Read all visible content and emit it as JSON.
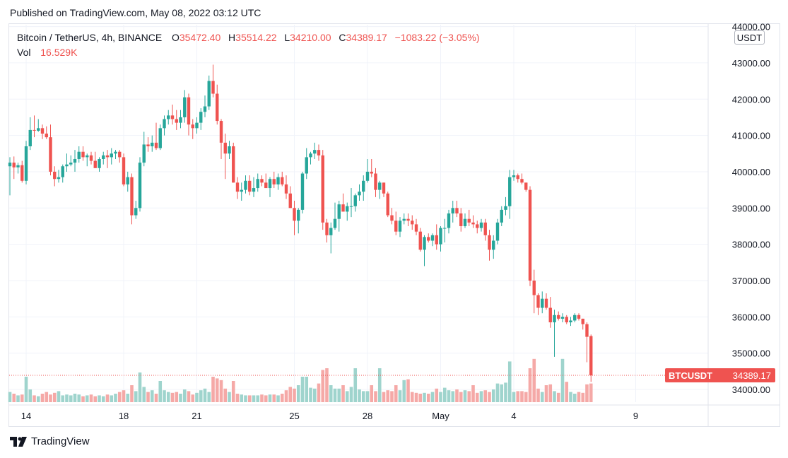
{
  "header": {
    "published": "Published on TradingView.com, May 08, 2022 03:12 UTC"
  },
  "legend": {
    "symbol": "Bitcoin / TetherUS, 4h, BINANCE",
    "open_label": "O",
    "open": "35472.40",
    "high_label": "H",
    "high": "35514.22",
    "low_label": "L",
    "low": "34210.00",
    "close_label": "C",
    "close": "34389.17",
    "change": "−1083.22 (−3.05%)",
    "vol_label": "Vol",
    "vol": "16.529K"
  },
  "currency": "USDT",
  "price_tag": {
    "ticker": "BTCUSDT",
    "price": "34389.17"
  },
  "brand": {
    "name": "TradingView"
  },
  "colors": {
    "up": "#26a69a",
    "down": "#ef5350",
    "up_vol": "#9fd4cd",
    "down_vol": "#f5a9a7",
    "grid": "#f0f3fa"
  },
  "chart_data": {
    "type": "candlestick",
    "interval": "4h",
    "y_axis": {
      "ticks": [
        "34000.00",
        "35000.00",
        "36000.00",
        "37000.00",
        "38000.00",
        "39000.00",
        "40000.00",
        "41000.00",
        "42000.00",
        "43000.00",
        "44000.00"
      ],
      "ylim": [
        33650,
        44050
      ]
    },
    "x_axis": {
      "ticks": [
        {
          "label": "14",
          "index": 4
        },
        {
          "label": "18",
          "index": 28
        },
        {
          "label": "21",
          "index": 46
        },
        {
          "label": "25",
          "index": 70
        },
        {
          "label": "28",
          "index": 88
        },
        {
          "label": "May",
          "index": 106
        },
        {
          "label": "4",
          "index": 124
        },
        {
          "label": "9",
          "index": 154
        }
      ]
    },
    "grid": true,
    "candles": [
      [
        40150,
        40400,
        39350,
        40250
      ],
      [
        40250,
        40420,
        39800,
        40120
      ],
      [
        40120,
        40250,
        39950,
        40180
      ],
      [
        40180,
        40300,
        39700,
        39750
      ],
      [
        39750,
        40850,
        39650,
        40700
      ],
      [
        40700,
        41500,
        40600,
        41150
      ],
      [
        41150,
        41550,
        40950,
        41130
      ],
      [
        41130,
        41450,
        41100,
        41200
      ],
      [
        41200,
        41300,
        40900,
        41050
      ],
      [
        41050,
        41250,
        40900,
        40950
      ],
      [
        40950,
        41300,
        39900,
        40000
      ],
      [
        40000,
        40150,
        39600,
        39800
      ],
      [
        39800,
        40050,
        39700,
        39850
      ],
      [
        39850,
        40200,
        39700,
        40150
      ],
      [
        40150,
        40500,
        40000,
        40200
      ],
      [
        40200,
        40450,
        40150,
        40250
      ],
      [
        40250,
        40600,
        40000,
        40350
      ],
      [
        40350,
        40700,
        40250,
        40550
      ],
      [
        40550,
        40700,
        40300,
        40400
      ],
      [
        40400,
        40500,
        40150,
        40450
      ],
      [
        40450,
        40550,
        40200,
        40300
      ],
      [
        40300,
        40550,
        40100,
        40100
      ],
      [
        40100,
        40400,
        40000,
        40350
      ],
      [
        40350,
        40550,
        40200,
        40450
      ],
      [
        40450,
        40600,
        40100,
        40400
      ],
      [
        40400,
        40650,
        40200,
        40500
      ],
      [
        40500,
        40600,
        40350,
        40550
      ],
      [
        40550,
        40600,
        40250,
        40400
      ],
      [
        40400,
        40500,
        39600,
        39650
      ],
      [
        39650,
        40000,
        39450,
        39850
      ],
      [
        39850,
        39950,
        38550,
        38800
      ],
      [
        38800,
        39200,
        38700,
        39000
      ],
      [
        39000,
        40400,
        38900,
        40250
      ],
      [
        40250,
        41100,
        40150,
        40750
      ],
      [
        40750,
        40950,
        40550,
        40700
      ],
      [
        40700,
        41000,
        40550,
        40800
      ],
      [
        40800,
        41350,
        40600,
        40650
      ],
      [
        40650,
        41300,
        40600,
        41200
      ],
      [
        41200,
        41550,
        41000,
        41450
      ],
      [
        41450,
        41700,
        41300,
        41550
      ],
      [
        41550,
        41850,
        41300,
        41450
      ],
      [
        41450,
        41700,
        41150,
        41350
      ],
      [
        41350,
        41700,
        41200,
        41500
      ],
      [
        41500,
        42250,
        41350,
        42050
      ],
      [
        42050,
        42150,
        41000,
        41300
      ],
      [
        41300,
        41450,
        40900,
        41200
      ],
      [
        41200,
        41500,
        41050,
        41350
      ],
      [
        41350,
        41750,
        41150,
        41650
      ],
      [
        41650,
        42100,
        41500,
        41800
      ],
      [
        41800,
        42650,
        41700,
        42500
      ],
      [
        42500,
        42950,
        42050,
        42150
      ],
      [
        42150,
        42400,
        41300,
        41400
      ],
      [
        41400,
        41450,
        40350,
        40800
      ],
      [
        40800,
        41050,
        39800,
        40500
      ],
      [
        40500,
        40850,
        40350,
        40700
      ],
      [
        40700,
        40800,
        39700,
        39700
      ],
      [
        39700,
        39850,
        39250,
        39450
      ],
      [
        39450,
        39700,
        39200,
        39500
      ],
      [
        39500,
        39900,
        39400,
        39750
      ],
      [
        39750,
        39900,
        39350,
        39450
      ],
      [
        39450,
        39850,
        39300,
        39550
      ],
      [
        39550,
        39950,
        39450,
        39800
      ],
      [
        39800,
        39900,
        39600,
        39700
      ],
      [
        39700,
        39950,
        39550,
        39550
      ],
      [
        39550,
        39850,
        39300,
        39800
      ],
      [
        39800,
        40000,
        39550,
        39650
      ],
      [
        39650,
        39950,
        39500,
        39850
      ],
      [
        39850,
        40000,
        39600,
        39650
      ],
      [
        39650,
        39900,
        39250,
        39400
      ],
      [
        39400,
        39600,
        39000,
        39000
      ],
      [
        39000,
        39200,
        38250,
        38650
      ],
      [
        38650,
        39000,
        38300,
        38950
      ],
      [
        38950,
        40000,
        38850,
        39950
      ],
      [
        39950,
        40650,
        39800,
        40400
      ],
      [
        40400,
        40550,
        40200,
        40500
      ],
      [
        40500,
        40800,
        40350,
        40600
      ],
      [
        40600,
        40750,
        40300,
        40450
      ],
      [
        40450,
        40600,
        38400,
        38600
      ],
      [
        38600,
        38700,
        38050,
        38250
      ],
      [
        38250,
        38600,
        37750,
        38450
      ],
      [
        38450,
        39150,
        38400,
        38700
      ],
      [
        38700,
        39200,
        38350,
        39100
      ],
      [
        39100,
        39400,
        38900,
        38900
      ],
      [
        38900,
        39150,
        38650,
        39050
      ],
      [
        39050,
        39550,
        38750,
        39050
      ],
      [
        39050,
        39400,
        38900,
        39350
      ],
      [
        39350,
        39650,
        39200,
        39450
      ],
      [
        39450,
        39900,
        39200,
        39750
      ],
      [
        39750,
        40350,
        39700,
        40000
      ],
      [
        40000,
        40350,
        39850,
        39950
      ],
      [
        39950,
        40100,
        39300,
        39500
      ],
      [
        39500,
        39750,
        39250,
        39700
      ],
      [
        39700,
        39700,
        39300,
        39400
      ],
      [
        39400,
        39450,
        38750,
        38800
      ],
      [
        38800,
        39000,
        38550,
        38650
      ],
      [
        38650,
        38900,
        38250,
        38350
      ],
      [
        38350,
        38750,
        38200,
        38650
      ],
      [
        38650,
        38850,
        38550,
        38700
      ],
      [
        38700,
        38850,
        38500,
        38650
      ],
      [
        38650,
        38800,
        38400,
        38550
      ],
      [
        38550,
        38700,
        38250,
        38350
      ],
      [
        38350,
        38450,
        37800,
        37850
      ],
      [
        37850,
        38250,
        37400,
        38200
      ],
      [
        38200,
        38300,
        38050,
        38100
      ],
      [
        38100,
        38300,
        37950,
        38250
      ],
      [
        38250,
        38550,
        37850,
        38000
      ],
      [
        38000,
        38500,
        37800,
        38450
      ],
      [
        38450,
        38700,
        38050,
        38450
      ],
      [
        38450,
        38950,
        38300,
        38850
      ],
      [
        38850,
        39200,
        38600,
        39000
      ],
      [
        39000,
        39200,
        38750,
        38850
      ],
      [
        38850,
        39000,
        38350,
        38500
      ],
      [
        38500,
        38850,
        38450,
        38700
      ],
      [
        38700,
        38950,
        38500,
        38600
      ],
      [
        38600,
        38800,
        38450,
        38550
      ],
      [
        38550,
        38650,
        38300,
        38450
      ],
      [
        38450,
        38700,
        38350,
        38600
      ],
      [
        38600,
        38700,
        38100,
        38250
      ],
      [
        38250,
        38400,
        37550,
        37850
      ],
      [
        37850,
        38250,
        37600,
        38100
      ],
      [
        38100,
        38700,
        38000,
        38600
      ],
      [
        38600,
        39050,
        38500,
        38950
      ],
      [
        38950,
        39300,
        38800,
        39050
      ],
      [
        39050,
        40050,
        38700,
        39850
      ],
      [
        39850,
        40050,
        39750,
        39900
      ],
      [
        39900,
        39950,
        39700,
        39800
      ],
      [
        39800,
        39950,
        39650,
        39700
      ],
      [
        39700,
        39700,
        39450,
        39500
      ],
      [
        39500,
        39600,
        36850,
        37000
      ],
      [
        37000,
        37300,
        36100,
        36600
      ],
      [
        36600,
        36650,
        36050,
        36250
      ],
      [
        36250,
        36700,
        36100,
        36500
      ],
      [
        36500,
        36650,
        36200,
        36250
      ],
      [
        36250,
        36550,
        35700,
        35850
      ],
      [
        35850,
        36200,
        34900,
        36050
      ],
      [
        36050,
        36150,
        35900,
        35950
      ],
      [
        35950,
        36100,
        35850,
        36000
      ],
      [
        36000,
        36050,
        35800,
        35850
      ],
      [
        35850,
        36000,
        35750,
        35900
      ],
      [
        35900,
        36100,
        35850,
        36050
      ],
      [
        36050,
        36100,
        35900,
        35950
      ],
      [
        35950,
        35950,
        35650,
        35800
      ],
      [
        35800,
        35850,
        34750,
        35450
      ],
      [
        35472.4,
        35514.22,
        34210,
        34389.17
      ]
    ],
    "volumes": [
      12,
      10,
      8,
      9,
      30,
      15,
      8,
      7,
      10,
      12,
      9,
      11,
      13,
      8,
      9,
      8,
      10,
      9,
      7,
      8,
      9,
      7,
      8,
      7,
      9,
      8,
      10,
      12,
      14,
      10,
      20,
      13,
      35,
      18,
      12,
      14,
      10,
      25,
      14,
      12,
      11,
      12,
      10,
      15,
      13,
      9,
      11,
      14,
      16,
      12,
      30,
      28,
      26,
      16,
      12,
      25,
      10,
      9,
      8,
      8,
      8,
      8,
      9,
      8,
      9,
      9,
      8,
      10,
      14,
      18,
      16,
      20,
      30,
      30,
      17,
      16,
      22,
      38,
      40,
      20,
      16,
      16,
      20,
      13,
      18,
      40,
      15,
      13,
      13,
      20,
      13,
      40,
      12,
      14,
      13,
      20,
      14,
      26,
      27,
      12,
      11,
      10,
      11,
      10,
      12,
      16,
      12,
      17,
      14,
      13,
      15,
      12,
      14,
      13,
      20,
      11,
      13,
      14,
      12,
      15,
      22,
      21,
      23,
      48,
      12,
      13,
      13,
      12,
      40,
      51,
      16,
      12,
      20,
      21,
      13,
      11,
      51,
      24,
      12,
      10,
      12,
      11,
      21,
      22
    ]
  }
}
